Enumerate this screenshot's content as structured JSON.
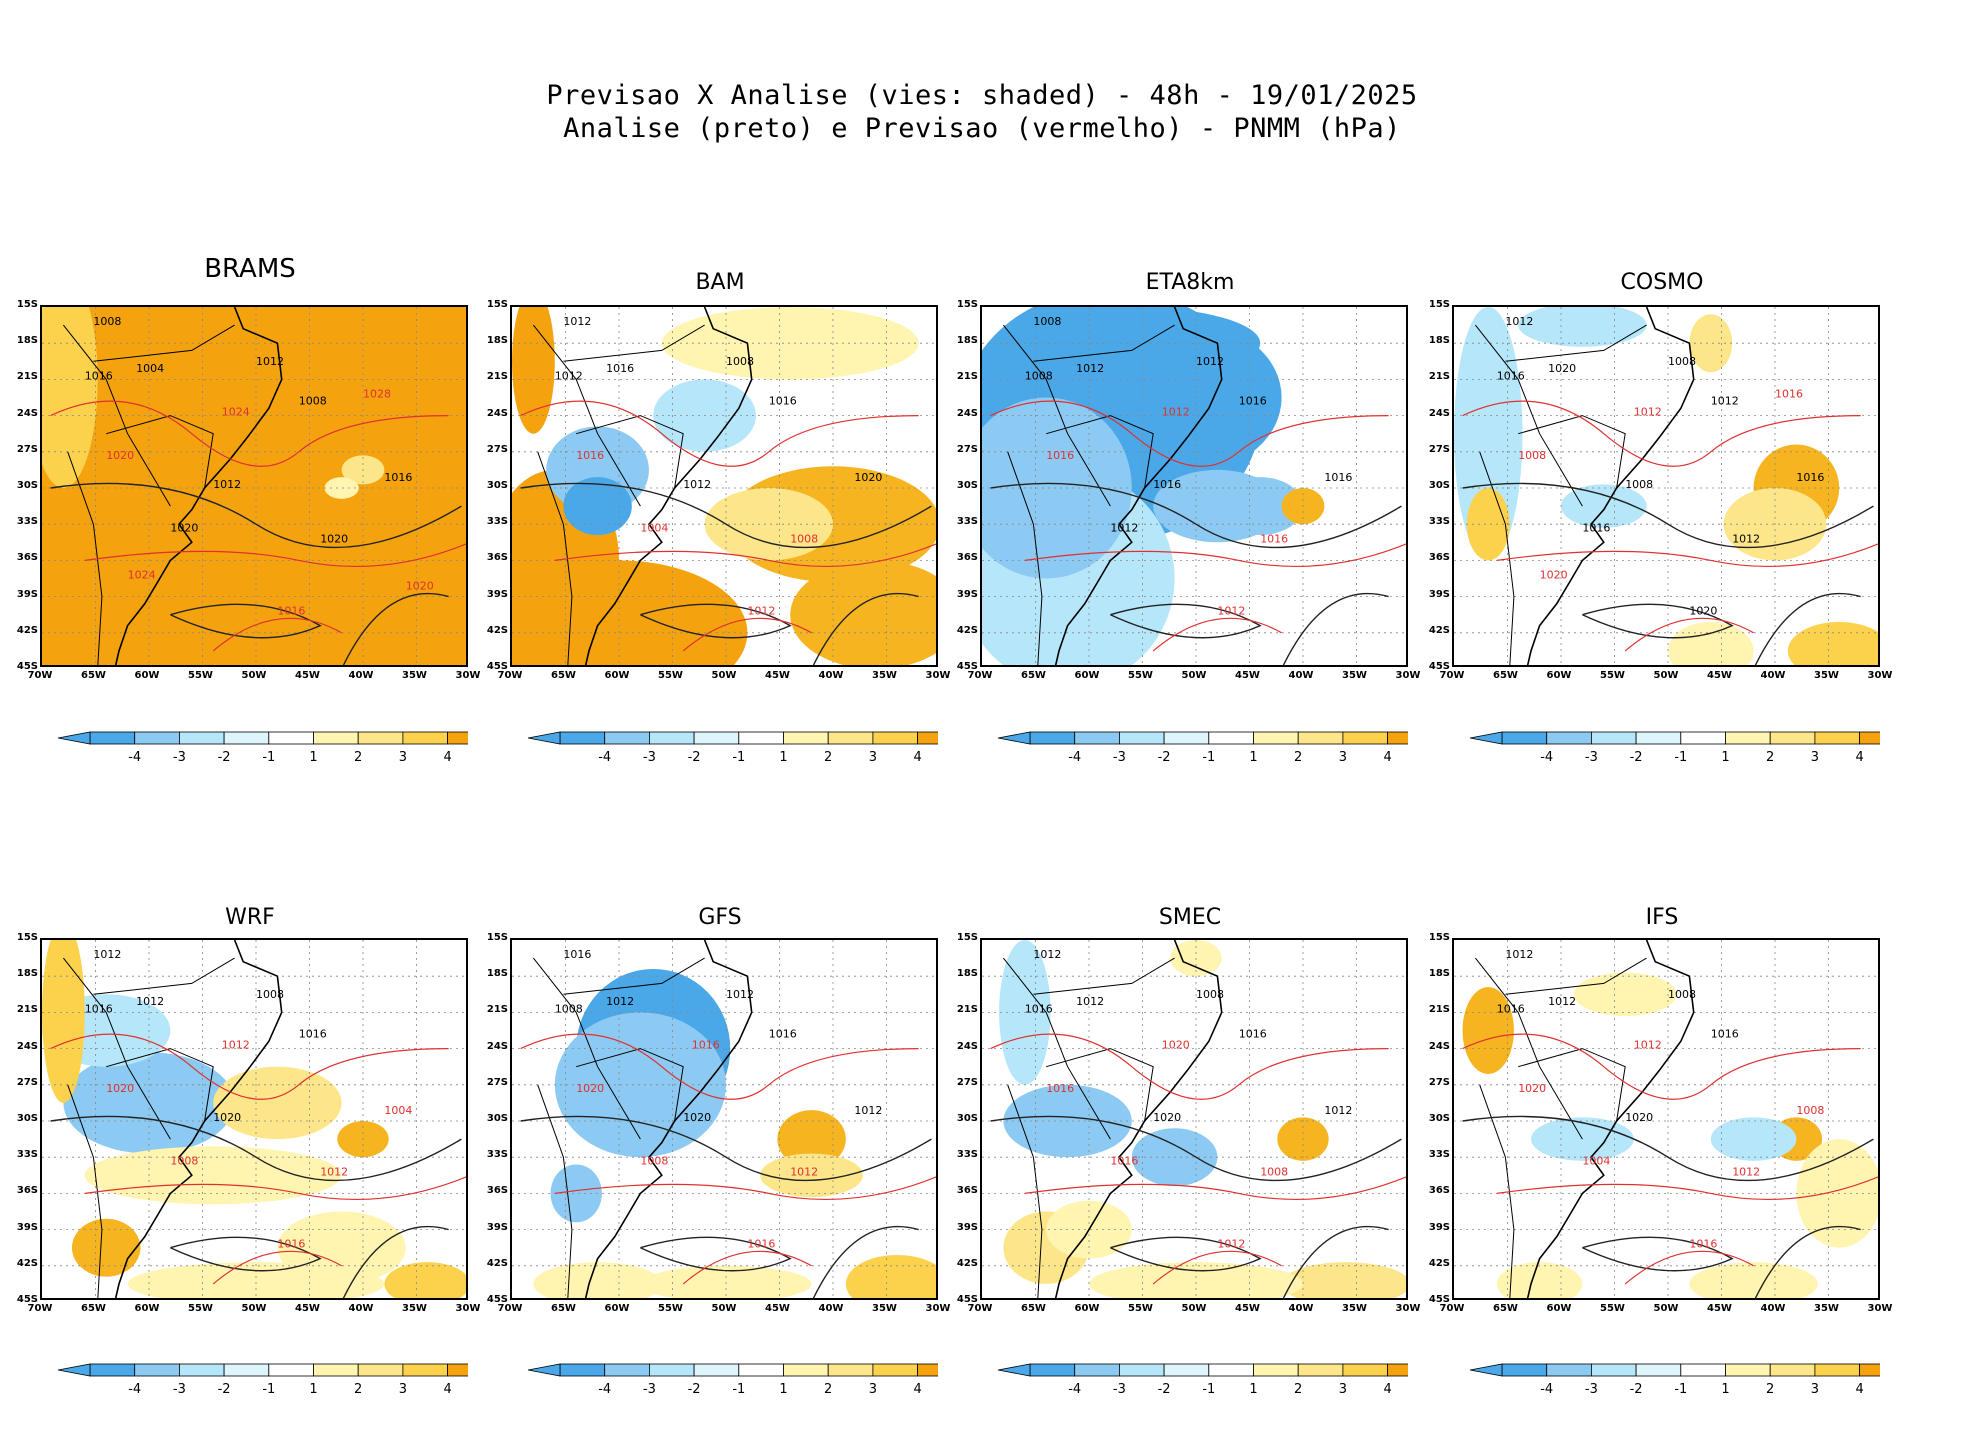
{
  "header": {
    "line1": "Previsao X Analise (vies: shaded) - 48h - 19/01/2025",
    "line2": "Analise (preto) e Previsao (vermelho) - PNMM (hPa)"
  },
  "axes": {
    "lat_labels": [
      "15S",
      "18S",
      "21S",
      "24S",
      "27S",
      "30S",
      "33S",
      "36S",
      "39S",
      "42S",
      "45S"
    ],
    "lon_labels": [
      "70W",
      "65W",
      "60W",
      "55W",
      "50W",
      "45W",
      "40W",
      "35W",
      "30W"
    ]
  },
  "colorbar": {
    "labels": [
      "-4",
      "-3",
      "-2",
      "-1",
      "1",
      "2",
      "3",
      "4"
    ],
    "colors": [
      "#4aa8e8",
      "#8ccaf3",
      "#b6e6fa",
      "#dff5fc",
      "#ffffff",
      "#fff4b0",
      "#fde68a",
      "#fcd24d",
      "#f6b421",
      "#f5a20f"
    ]
  },
  "panels": [
    {
      "id": "brams",
      "title": "BRAMS",
      "contours": [
        {
          "t": "1008",
          "c": "k"
        },
        {
          "t": "1012",
          "c": "k"
        },
        {
          "t": "1016",
          "c": "k"
        },
        {
          "t": "1004",
          "c": "k"
        },
        {
          "t": "1008",
          "c": "k"
        },
        {
          "t": "1012",
          "c": "k"
        },
        {
          "t": "1016",
          "c": "k"
        },
        {
          "t": "1020",
          "c": "k"
        },
        {
          "t": "1020",
          "c": "k"
        },
        {
          "t": "1016",
          "c": "r"
        },
        {
          "t": "1020",
          "c": "r"
        },
        {
          "t": "1024",
          "c": "r"
        },
        {
          "t": "1028",
          "c": "r"
        },
        {
          "t": "1024",
          "c": "r"
        },
        {
          "t": "1020",
          "c": "r"
        }
      ]
    },
    {
      "id": "bam",
      "title": "BAM",
      "contours": [
        {
          "t": "1012",
          "c": "k"
        },
        {
          "t": "1008",
          "c": "k"
        },
        {
          "t": "1012",
          "c": "k"
        },
        {
          "t": "1016",
          "c": "k"
        },
        {
          "t": "1016",
          "c": "k"
        },
        {
          "t": "1012",
          "c": "k"
        },
        {
          "t": "1020",
          "c": "k"
        },
        {
          "t": "1004",
          "c": "r"
        },
        {
          "t": "1008",
          "c": "r"
        },
        {
          "t": "1012",
          "c": "r"
        },
        {
          "t": "1016",
          "c": "r"
        }
      ]
    },
    {
      "id": "eta8km",
      "title": "ETA8km",
      "contours": [
        {
          "t": "1008",
          "c": "k"
        },
        {
          "t": "1012",
          "c": "k"
        },
        {
          "t": "1008",
          "c": "k"
        },
        {
          "t": "1012",
          "c": "k"
        },
        {
          "t": "1016",
          "c": "k"
        },
        {
          "t": "1016",
          "c": "k"
        },
        {
          "t": "1016",
          "c": "k"
        },
        {
          "t": "1012",
          "c": "k"
        },
        {
          "t": "1016",
          "c": "r"
        },
        {
          "t": "1012",
          "c": "r"
        },
        {
          "t": "1016",
          "c": "r"
        },
        {
          "t": "1012",
          "c": "r"
        }
      ]
    },
    {
      "id": "cosmo",
      "title": "COSMO",
      "contours": [
        {
          "t": "1012",
          "c": "k"
        },
        {
          "t": "1008",
          "c": "k"
        },
        {
          "t": "1016",
          "c": "k"
        },
        {
          "t": "1020",
          "c": "k"
        },
        {
          "t": "1012",
          "c": "k"
        },
        {
          "t": "1008",
          "c": "k"
        },
        {
          "t": "1016",
          "c": "k"
        },
        {
          "t": "1016",
          "c": "k"
        },
        {
          "t": "1012",
          "c": "k"
        },
        {
          "t": "1020",
          "c": "k"
        },
        {
          "t": "1008",
          "c": "r"
        },
        {
          "t": "1012",
          "c": "r"
        },
        {
          "t": "1016",
          "c": "r"
        },
        {
          "t": "1020",
          "c": "r"
        }
      ]
    },
    {
      "id": "wrf",
      "title": "WRF",
      "contours": [
        {
          "t": "1012",
          "c": "k"
        },
        {
          "t": "1008",
          "c": "k"
        },
        {
          "t": "1016",
          "c": "k"
        },
        {
          "t": "1012",
          "c": "k"
        },
        {
          "t": "1016",
          "c": "k"
        },
        {
          "t": "1020",
          "c": "k"
        },
        {
          "t": "1004",
          "c": "r"
        },
        {
          "t": "1008",
          "c": "r"
        },
        {
          "t": "1012",
          "c": "r"
        },
        {
          "t": "1016",
          "c": "r"
        },
        {
          "t": "1020",
          "c": "r"
        },
        {
          "t": "1012",
          "c": "r"
        }
      ]
    },
    {
      "id": "gfs",
      "title": "GFS",
      "contours": [
        {
          "t": "1016",
          "c": "k"
        },
        {
          "t": "1012",
          "c": "k"
        },
        {
          "t": "1008",
          "c": "k"
        },
        {
          "t": "1012",
          "c": "k"
        },
        {
          "t": "1016",
          "c": "k"
        },
        {
          "t": "1020",
          "c": "k"
        },
        {
          "t": "1012",
          "c": "k"
        },
        {
          "t": "1008",
          "c": "r"
        },
        {
          "t": "1012",
          "c": "r"
        },
        {
          "t": "1016",
          "c": "r"
        },
        {
          "t": "1020",
          "c": "r"
        },
        {
          "t": "1016",
          "c": "r"
        }
      ]
    },
    {
      "id": "smec",
      "title": "SMEC",
      "contours": [
        {
          "t": "1012",
          "c": "k"
        },
        {
          "t": "1008",
          "c": "k"
        },
        {
          "t": "1016",
          "c": "k"
        },
        {
          "t": "1012",
          "c": "k"
        },
        {
          "t": "1016",
          "c": "k"
        },
        {
          "t": "1020",
          "c": "k"
        },
        {
          "t": "1012",
          "c": "k"
        },
        {
          "t": "1016",
          "c": "r"
        },
        {
          "t": "1008",
          "c": "r"
        },
        {
          "t": "1012",
          "c": "r"
        },
        {
          "t": "1016",
          "c": "r"
        },
        {
          "t": "1020",
          "c": "r"
        }
      ]
    },
    {
      "id": "ifs",
      "title": "IFS",
      "contours": [
        {
          "t": "1012",
          "c": "k"
        },
        {
          "t": "1008",
          "c": "k"
        },
        {
          "t": "1016",
          "c": "k"
        },
        {
          "t": "1012",
          "c": "k"
        },
        {
          "t": "1016",
          "c": "k"
        },
        {
          "t": "1020",
          "c": "k"
        },
        {
          "t": "1008",
          "c": "r"
        },
        {
          "t": "1004",
          "c": "r"
        },
        {
          "t": "1012",
          "c": "r"
        },
        {
          "t": "1016",
          "c": "r"
        },
        {
          "t": "1020",
          "c": "r"
        },
        {
          "t": "1012",
          "c": "r"
        }
      ]
    }
  ]
}
